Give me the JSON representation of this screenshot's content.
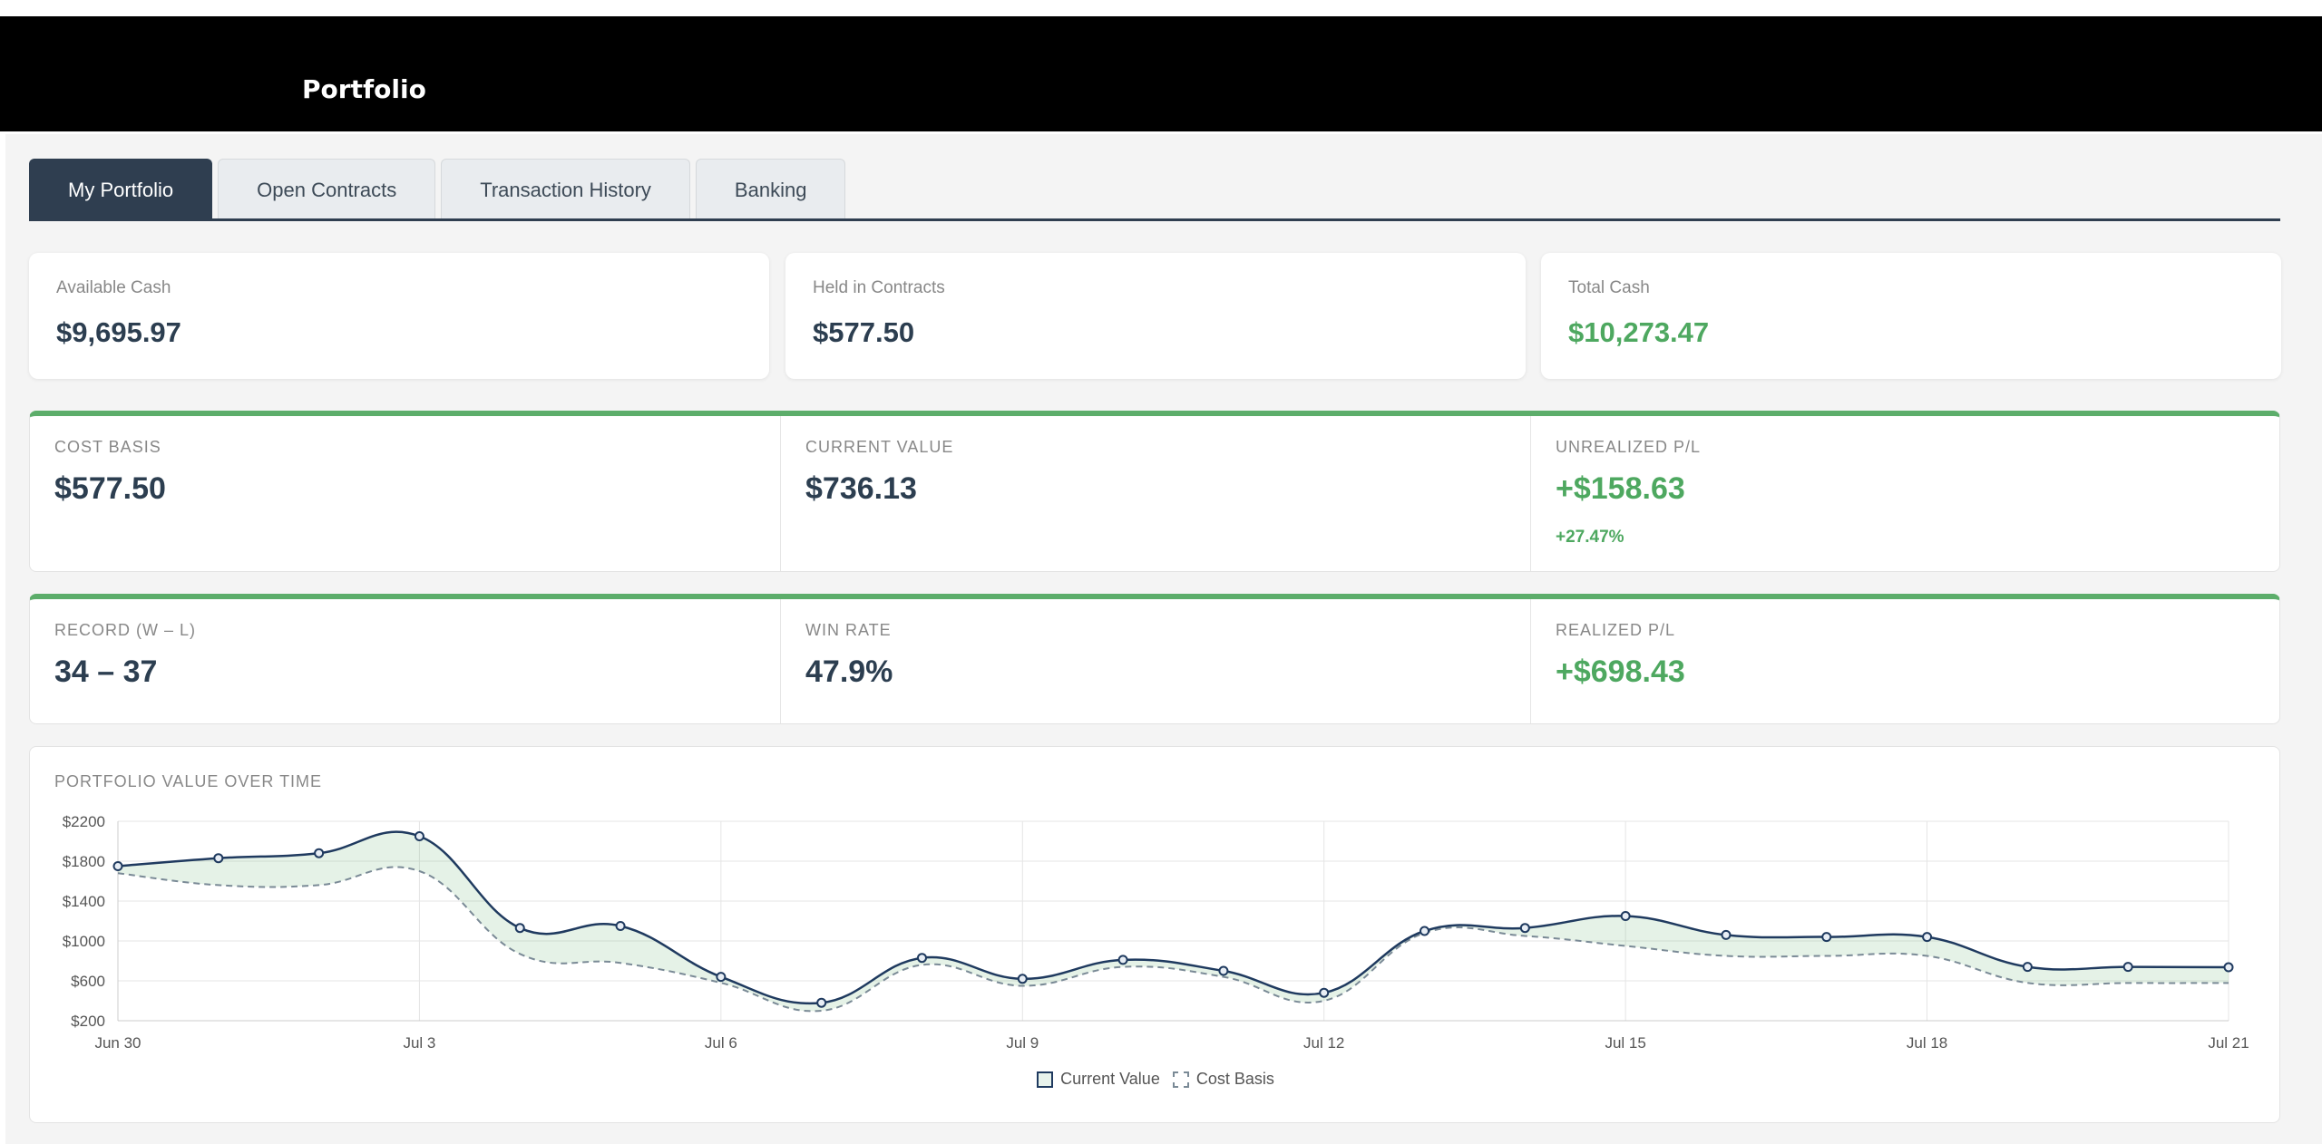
{
  "app": {
    "title": "Portfolio"
  },
  "tabs": [
    {
      "label": "My Portfolio",
      "active": true
    },
    {
      "label": "Open Contracts",
      "active": false
    },
    {
      "label": "Transaction History",
      "active": false
    },
    {
      "label": "Banking",
      "active": false
    }
  ],
  "cash": {
    "available": {
      "label": "Available Cash",
      "value": "$9,695.97"
    },
    "held": {
      "label": "Held in Contracts",
      "value": "$577.50"
    },
    "total": {
      "label": "Total Cash",
      "value": "$10,273.47"
    }
  },
  "positions": {
    "cost_basis": {
      "label": "COST BASIS",
      "value": "$577.50"
    },
    "current_value": {
      "label": "CURRENT VALUE",
      "value": "$736.13"
    },
    "unrealized": {
      "label": "UNREALIZED P/L",
      "value": "+$158.63",
      "pct": "+27.47%"
    }
  },
  "record": {
    "wl": {
      "label": "RECORD (W – L)",
      "value": "34 – 37"
    },
    "win_rate": {
      "label": "WIN RATE",
      "value": "47.9%"
    },
    "realized": {
      "label": "REALIZED P/L",
      "value": "+$698.43"
    }
  },
  "colors": {
    "accent_green": "#4ea860",
    "navy": "#1f3a5f",
    "tab_active": "#2f3e50"
  },
  "chart_title": "PORTFOLIO VALUE OVER TIME",
  "chart_data": {
    "type": "line",
    "title": "PORTFOLIO VALUE OVER TIME",
    "x": [
      "Jun 30",
      "Jul 1",
      "Jul 2",
      "Jul 3",
      "Jul 4",
      "Jul 5",
      "Jul 6",
      "Jul 7",
      "Jul 8",
      "Jul 9",
      "Jul 10",
      "Jul 11",
      "Jul 12",
      "Jul 13",
      "Jul 14",
      "Jul 15",
      "Jul 16",
      "Jul 17",
      "Jul 18",
      "Jul 19",
      "Jul 20",
      "Jul 21"
    ],
    "x_tick_labels": [
      "Jun 30",
      "Jul 3",
      "Jul 6",
      "Jul 9",
      "Jul 12",
      "Jul 15",
      "Jul 18",
      "Jul 21"
    ],
    "y_tick_labels": [
      "$200",
      "$600",
      "$1000",
      "$1400",
      "$1800",
      "$2200"
    ],
    "ylim": [
      200,
      2200
    ],
    "grid": true,
    "legend_position": "bottom",
    "series": [
      {
        "name": "Current Value",
        "style": "solid",
        "color": "#1f3a5f",
        "values": [
          1750,
          1830,
          1880,
          2050,
          1130,
          1150,
          640,
          380,
          830,
          620,
          810,
          700,
          480,
          1100,
          1130,
          1250,
          1060,
          1040,
          1040,
          740,
          740,
          736
        ]
      },
      {
        "name": "Cost Basis",
        "style": "dashed",
        "color": "#7a8a96",
        "values": [
          1680,
          1560,
          1560,
          1700,
          870,
          780,
          580,
          300,
          760,
          550,
          740,
          640,
          400,
          1080,
          1050,
          950,
          850,
          850,
          850,
          580,
          578,
          578
        ]
      }
    ]
  }
}
